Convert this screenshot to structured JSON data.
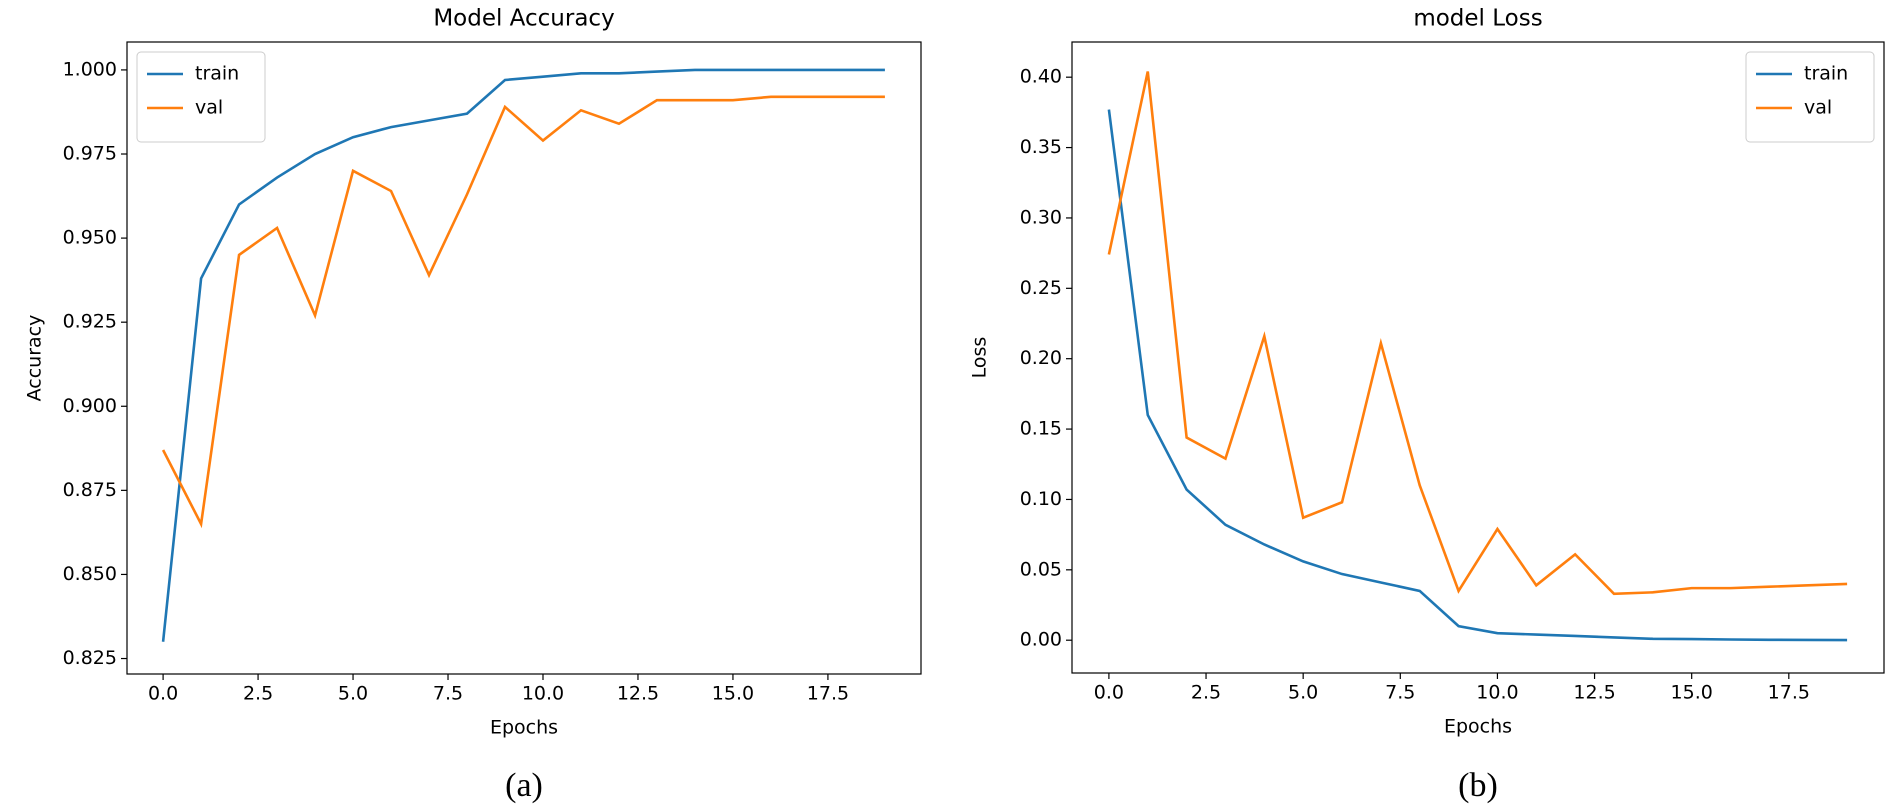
{
  "chart_data": [
    {
      "type": "line",
      "title": "Model Accuracy",
      "caption": "(a)",
      "x_label": "Epochs",
      "y_label": "Accuracy",
      "x": [
        0,
        1,
        2,
        3,
        4,
        5,
        6,
        7,
        8,
        9,
        10,
        11,
        12,
        13,
        14,
        15,
        16,
        17,
        18,
        19
      ],
      "series": [
        {
          "name": "train",
          "color": "#1f77b4",
          "values": [
            0.83,
            0.938,
            0.96,
            0.968,
            0.975,
            0.98,
            0.983,
            0.985,
            0.987,
            0.997,
            0.998,
            0.999,
            0.999,
            0.9995,
            1.0,
            1.0,
            1.0,
            1.0,
            1.0,
            1.0
          ]
        },
        {
          "name": "val",
          "color": "#ff7f0e",
          "values": [
            0.887,
            0.865,
            0.945,
            0.953,
            0.927,
            0.97,
            0.964,
            0.939,
            0.963,
            0.989,
            0.979,
            0.988,
            0.984,
            0.991,
            0.991,
            0.991,
            0.992,
            0.992,
            0.992,
            0.992
          ]
        }
      ],
      "xlim": [
        -0.95,
        19.95
      ],
      "xticks": [
        {
          "value": 0,
          "label": "0.0"
        },
        {
          "value": 2.5,
          "label": "2.5"
        },
        {
          "value": 5,
          "label": "5.0"
        },
        {
          "value": 7.5,
          "label": "7.5"
        },
        {
          "value": 10,
          "label": "10.0"
        },
        {
          "value": 12.5,
          "label": "12.5"
        },
        {
          "value": 15,
          "label": "15.0"
        },
        {
          "value": 17.5,
          "label": "17.5"
        }
      ],
      "ylim": [
        0.8204,
        1.0083
      ],
      "yticks": [
        {
          "value": 0.825,
          "label": "0.825"
        },
        {
          "value": 0.85,
          "label": "0.850"
        },
        {
          "value": 0.875,
          "label": "0.875"
        },
        {
          "value": 0.9,
          "label": "0.900"
        },
        {
          "value": 0.925,
          "label": "0.925"
        },
        {
          "value": 0.95,
          "label": "0.950"
        },
        {
          "value": 0.975,
          "label": "0.975"
        },
        {
          "value": 1.0,
          "label": "1.000"
        }
      ],
      "legend": "upper left"
    },
    {
      "type": "line",
      "title": "model Loss",
      "caption": "(b)",
      "x_label": "Epochs",
      "y_label": "Loss",
      "x": [
        0,
        1,
        2,
        3,
        4,
        5,
        6,
        7,
        8,
        9,
        10,
        11,
        12,
        13,
        14,
        15,
        16,
        17,
        18,
        19
      ],
      "series": [
        {
          "name": "train",
          "color": "#1f77b4",
          "values": [
            0.377,
            0.16,
            0.107,
            0.082,
            0.068,
            0.056,
            0.047,
            0.041,
            0.035,
            0.01,
            0.005,
            0.004,
            0.003,
            0.002,
            0.001,
            0.0008,
            0.0005,
            0.0003,
            0.0002,
            0.0001
          ]
        },
        {
          "name": "val",
          "color": "#ff7f0e",
          "values": [
            0.274,
            0.404,
            0.144,
            0.129,
            0.216,
            0.087,
            0.098,
            0.211,
            0.11,
            0.035,
            0.079,
            0.039,
            0.061,
            0.033,
            0.034,
            0.037,
            0.037,
            0.038,
            0.039,
            0.04
          ]
        }
      ],
      "xlim": [
        -0.95,
        19.95
      ],
      "xticks": [
        {
          "value": 0,
          "label": "0.0"
        },
        {
          "value": 2.5,
          "label": "2.5"
        },
        {
          "value": 5,
          "label": "5.0"
        },
        {
          "value": 7.5,
          "label": "7.5"
        },
        {
          "value": 10,
          "label": "10.0"
        },
        {
          "value": 12.5,
          "label": "12.5"
        },
        {
          "value": 15,
          "label": "15.0"
        },
        {
          "value": 17.5,
          "label": "17.5"
        }
      ],
      "ylim": [
        -0.0233,
        0.425
      ],
      "yticks": [
        {
          "value": 0,
          "label": "0.00"
        },
        {
          "value": 0.05,
          "label": "0.05"
        },
        {
          "value": 0.1,
          "label": "0.10"
        },
        {
          "value": 0.15,
          "label": "0.15"
        },
        {
          "value": 0.2,
          "label": "0.20"
        },
        {
          "value": 0.25,
          "label": "0.25"
        },
        {
          "value": 0.3,
          "label": "0.30"
        },
        {
          "value": 0.35,
          "label": "0.35"
        },
        {
          "value": 0.4,
          "label": "0.40"
        }
      ],
      "legend": "upper right"
    }
  ]
}
